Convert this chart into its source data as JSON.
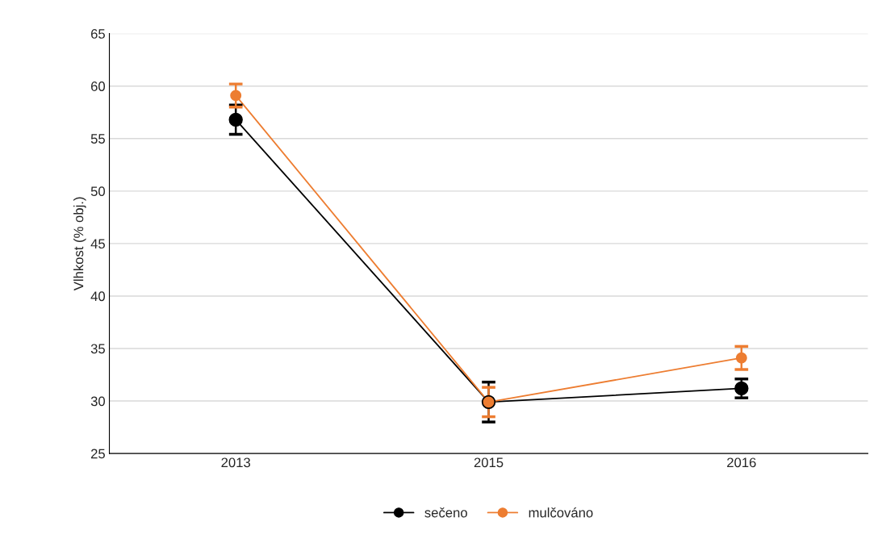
{
  "chart_data": {
    "type": "line",
    "ylabel": "Vlhkost (% obj.)",
    "categories": [
      "2013",
      "2015",
      "2016"
    ],
    "series": [
      {
        "name": "sečeno",
        "color": "#000000",
        "values": [
          56.8,
          29.9,
          31.2
        ],
        "errors": [
          1.4,
          1.9,
          0.9
        ]
      },
      {
        "name": "mulčováno",
        "color": "#ed7d31",
        "values": [
          59.1,
          29.9,
          34.1
        ],
        "errors": [
          1.1,
          1.4,
          1.1
        ]
      }
    ],
    "ylim": [
      25,
      65
    ],
    "yticks": [
      25,
      30,
      35,
      40,
      45,
      50,
      55,
      60,
      65
    ],
    "grid": "y",
    "legend": "bottom",
    "marker": "circle",
    "line_style": "solid"
  }
}
